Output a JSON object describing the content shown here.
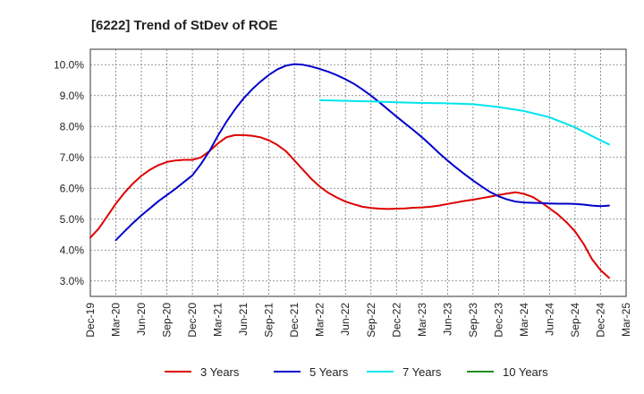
{
  "chart_data": {
    "type": "line",
    "title": "[6222]  Trend of StDev of ROE",
    "xlabel": "",
    "ylabel": "",
    "x_ticks": [
      "Dec-19",
      "Mar-20",
      "Jun-20",
      "Sep-20",
      "Dec-20",
      "Mar-21",
      "Jun-21",
      "Sep-21",
      "Dec-21",
      "Mar-22",
      "Jun-22",
      "Sep-22",
      "Dec-22",
      "Mar-23",
      "Jun-23",
      "Sep-23",
      "Dec-23",
      "Mar-24",
      "Jun-24",
      "Sep-24",
      "Dec-24",
      "Mar-25"
    ],
    "y_ticks": [
      "3.0%",
      "4.0%",
      "5.0%",
      "6.0%",
      "7.0%",
      "8.0%",
      "9.0%",
      "10.0%"
    ],
    "y_tick_values": [
      3,
      4,
      5,
      6,
      7,
      8,
      9,
      10
    ],
    "ylim": [
      2.5,
      10.5
    ],
    "grid": true,
    "legend_position": "bottom",
    "series": [
      {
        "name": "3 Years",
        "color": "#dd0000",
        "points": [
          [
            "Dec-19",
            4.4
          ],
          [
            "Jan-20",
            4.7
          ],
          [
            "Feb-20",
            5.1
          ],
          [
            "Mar-20",
            5.5
          ],
          [
            "Apr-20",
            5.85
          ],
          [
            "May-20",
            6.15
          ],
          [
            "Jun-20",
            6.4
          ],
          [
            "Jul-20",
            6.6
          ],
          [
            "Aug-20",
            6.75
          ],
          [
            "Sep-20",
            6.85
          ],
          [
            "Oct-20",
            6.9
          ],
          [
            "Nov-20",
            6.92
          ],
          [
            "Dec-20",
            6.92
          ],
          [
            "Jan-21",
            7.0
          ],
          [
            "Feb-21",
            7.2
          ],
          [
            "Mar-21",
            7.45
          ],
          [
            "Apr-21",
            7.65
          ],
          [
            "May-21",
            7.72
          ],
          [
            "Jun-21",
            7.72
          ],
          [
            "Jul-21",
            7.7
          ],
          [
            "Aug-21",
            7.65
          ],
          [
            "Sep-21",
            7.55
          ],
          [
            "Oct-21",
            7.4
          ],
          [
            "Nov-21",
            7.2
          ],
          [
            "Dec-21",
            6.9
          ],
          [
            "Jan-22",
            6.6
          ],
          [
            "Feb-22",
            6.3
          ],
          [
            "Mar-22",
            6.05
          ],
          [
            "Apr-22",
            5.85
          ],
          [
            "May-22",
            5.7
          ],
          [
            "Jun-22",
            5.57
          ],
          [
            "Jul-22",
            5.48
          ],
          [
            "Aug-22",
            5.4
          ],
          [
            "Sep-22",
            5.36
          ],
          [
            "Oct-22",
            5.34
          ],
          [
            "Nov-22",
            5.33
          ],
          [
            "Dec-22",
            5.34
          ],
          [
            "Jan-23",
            5.35
          ],
          [
            "Feb-23",
            5.37
          ],
          [
            "Mar-23",
            5.38
          ],
          [
            "Apr-23",
            5.4
          ],
          [
            "May-23",
            5.44
          ],
          [
            "Jun-23",
            5.49
          ],
          [
            "Jul-23",
            5.54
          ],
          [
            "Aug-23",
            5.59
          ],
          [
            "Sep-23",
            5.63
          ],
          [
            "Oct-23",
            5.68
          ],
          [
            "Nov-23",
            5.73
          ],
          [
            "Dec-23",
            5.78
          ],
          [
            "Jan-24",
            5.83
          ],
          [
            "Feb-24",
            5.87
          ],
          [
            "Mar-24",
            5.82
          ],
          [
            "Apr-24",
            5.72
          ],
          [
            "May-24",
            5.55
          ],
          [
            "Jun-24",
            5.35
          ],
          [
            "Jul-24",
            5.15
          ],
          [
            "Aug-24",
            4.9
          ],
          [
            "Sep-24",
            4.6
          ],
          [
            "Oct-24",
            4.2
          ],
          [
            "Nov-24",
            3.7
          ],
          [
            "Dec-24",
            3.35
          ],
          [
            "Jan-25",
            3.1
          ]
        ]
      },
      {
        "name": "5 Years",
        "color": "#0000cc",
        "points": [
          [
            "Mar-20",
            4.32
          ],
          [
            "Apr-20",
            4.6
          ],
          [
            "May-20",
            4.87
          ],
          [
            "Jun-20",
            5.12
          ],
          [
            "Jul-20",
            5.35
          ],
          [
            "Aug-20",
            5.58
          ],
          [
            "Sep-20",
            5.78
          ],
          [
            "Oct-20",
            5.98
          ],
          [
            "Nov-20",
            6.2
          ],
          [
            "Dec-20",
            6.42
          ],
          [
            "Jan-21",
            6.78
          ],
          [
            "Feb-21",
            7.2
          ],
          [
            "Mar-21",
            7.7
          ],
          [
            "Apr-21",
            8.15
          ],
          [
            "May-21",
            8.55
          ],
          [
            "Jun-21",
            8.9
          ],
          [
            "Jul-21",
            9.2
          ],
          [
            "Aug-21",
            9.45
          ],
          [
            "Sep-21",
            9.67
          ],
          [
            "Oct-21",
            9.85
          ],
          [
            "Nov-21",
            9.97
          ],
          [
            "Dec-21",
            10.02
          ],
          [
            "Jan-22",
            10.0
          ],
          [
            "Feb-22",
            9.94
          ],
          [
            "Mar-22",
            9.86
          ],
          [
            "Apr-22",
            9.77
          ],
          [
            "May-22",
            9.66
          ],
          [
            "Jun-22",
            9.53
          ],
          [
            "Jul-22",
            9.38
          ],
          [
            "Aug-22",
            9.2
          ],
          [
            "Sep-22",
            9.0
          ],
          [
            "Oct-22",
            8.78
          ],
          [
            "Nov-22",
            8.55
          ],
          [
            "Dec-22",
            8.32
          ],
          [
            "Jan-23",
            8.1
          ],
          [
            "Feb-23",
            7.88
          ],
          [
            "Mar-23",
            7.65
          ],
          [
            "Apr-23",
            7.4
          ],
          [
            "May-23",
            7.14
          ],
          [
            "Jun-23",
            6.9
          ],
          [
            "Jul-23",
            6.67
          ],
          [
            "Aug-23",
            6.46
          ],
          [
            "Sep-23",
            6.25
          ],
          [
            "Oct-23",
            6.06
          ],
          [
            "Nov-23",
            5.88
          ],
          [
            "Dec-23",
            5.74
          ],
          [
            "Jan-24",
            5.64
          ],
          [
            "Feb-24",
            5.57
          ],
          [
            "Mar-24",
            5.54
          ],
          [
            "Apr-24",
            5.53
          ],
          [
            "May-24",
            5.52
          ],
          [
            "Jun-24",
            5.51
          ],
          [
            "Jul-24",
            5.5
          ],
          [
            "Aug-24",
            5.5
          ],
          [
            "Sep-24",
            5.49
          ],
          [
            "Oct-24",
            5.47
          ],
          [
            "Nov-24",
            5.44
          ],
          [
            "Dec-24",
            5.42
          ],
          [
            "Jan-25",
            5.44
          ]
        ]
      },
      {
        "name": "7 Years",
        "color": "#00e5ee",
        "points": [
          [
            "Mar-22",
            8.85
          ],
          [
            "Jun-22",
            8.83
          ],
          [
            "Sep-22",
            8.81
          ],
          [
            "Dec-22",
            8.78
          ],
          [
            "Mar-23",
            8.76
          ],
          [
            "Jun-23",
            8.75
          ],
          [
            "Sep-23",
            8.72
          ],
          [
            "Dec-23",
            8.63
          ],
          [
            "Mar-24",
            8.5
          ],
          [
            "Jun-24",
            8.3
          ],
          [
            "Sep-24",
            7.97
          ],
          [
            "Dec-24",
            7.55
          ],
          [
            "Jan-25",
            7.42
          ]
        ]
      },
      {
        "name": "10 Years",
        "color": "#228b22",
        "points": []
      }
    ]
  }
}
